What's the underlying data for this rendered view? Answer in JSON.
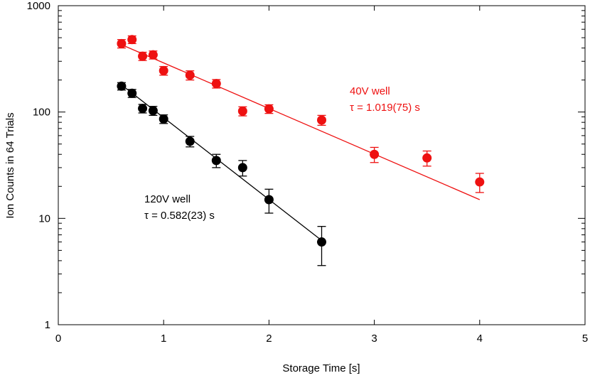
{
  "chart_data": {
    "type": "scatter",
    "title": "",
    "xlabel": "Storage Time [s]",
    "ylabel": "Ion Counts in 64 Trials",
    "xlim": [
      0,
      5
    ],
    "ylim": [
      1,
      1000
    ],
    "yscale": "log",
    "grid": false,
    "x_ticks": [
      0,
      1,
      2,
      3,
      4,
      5
    ],
    "x_tick_labels": [
      "0",
      "1",
      "2",
      "3",
      "4",
      "5"
    ],
    "y_ticks": [
      1,
      10,
      100,
      1000
    ],
    "y_tick_labels": [
      "1",
      "10",
      "100",
      "1000"
    ],
    "series": [
      {
        "name": "40V well",
        "color": "#ee1111",
        "annotation": [
          "40V well",
          "τ = 1.019(75) s"
        ],
        "points": [
          {
            "x": 0.6,
            "y": 440,
            "yerr_low": 400,
            "yerr_high": 480
          },
          {
            "x": 0.7,
            "y": 480,
            "yerr_low": 440,
            "yerr_high": 520
          },
          {
            "x": 0.8,
            "y": 335,
            "yerr_low": 305,
            "yerr_high": 365
          },
          {
            "x": 0.9,
            "y": 345,
            "yerr_low": 315,
            "yerr_high": 375
          },
          {
            "x": 1.0,
            "y": 245,
            "yerr_low": 222,
            "yerr_high": 268
          },
          {
            "x": 1.25,
            "y": 222,
            "yerr_low": 200,
            "yerr_high": 244
          },
          {
            "x": 1.5,
            "y": 185,
            "yerr_low": 168,
            "yerr_high": 202
          },
          {
            "x": 1.75,
            "y": 102,
            "yerr_low": 92,
            "yerr_high": 112
          },
          {
            "x": 2.0,
            "y": 107,
            "yerr_low": 97,
            "yerr_high": 117
          },
          {
            "x": 2.5,
            "y": 84,
            "yerr_low": 75,
            "yerr_high": 93
          },
          {
            "x": 3.0,
            "y": 40,
            "yerr_low": 33.5,
            "yerr_high": 46.5
          },
          {
            "x": 3.5,
            "y": 37,
            "yerr_low": 31,
            "yerr_high": 43
          },
          {
            "x": 4.0,
            "y": 22,
            "yerr_low": 17.5,
            "yerr_high": 26.5
          }
        ],
        "fit": {
          "x": [
            0.6,
            4.0
          ],
          "y": [
            430,
            15
          ]
        }
      },
      {
        "name": "120V well",
        "color": "#000000",
        "annotation": [
          "120V well",
          "τ = 0.582(23) s"
        ],
        "points": [
          {
            "x": 0.6,
            "y": 175,
            "yerr_low": 161,
            "yerr_high": 189
          },
          {
            "x": 0.7,
            "y": 150,
            "yerr_low": 137,
            "yerr_high": 163
          },
          {
            "x": 0.8,
            "y": 108,
            "yerr_low": 98,
            "yerr_high": 118
          },
          {
            "x": 0.9,
            "y": 103,
            "yerr_low": 93,
            "yerr_high": 113
          },
          {
            "x": 1.0,
            "y": 86,
            "yerr_low": 78,
            "yerr_high": 94
          },
          {
            "x": 1.25,
            "y": 53,
            "yerr_low": 47,
            "yerr_high": 59
          },
          {
            "x": 1.5,
            "y": 35,
            "yerr_low": 30,
            "yerr_high": 40
          },
          {
            "x": 1.75,
            "y": 30,
            "yerr_low": 25,
            "yerr_high": 35
          },
          {
            "x": 2.0,
            "y": 15,
            "yerr_low": 11.2,
            "yerr_high": 18.8
          },
          {
            "x": 2.5,
            "y": 6,
            "yerr_low": 3.6,
            "yerr_high": 8.4
          }
        ],
        "fit": {
          "x": [
            0.6,
            2.5
          ],
          "y": [
            180,
            6.2
          ]
        }
      }
    ]
  }
}
